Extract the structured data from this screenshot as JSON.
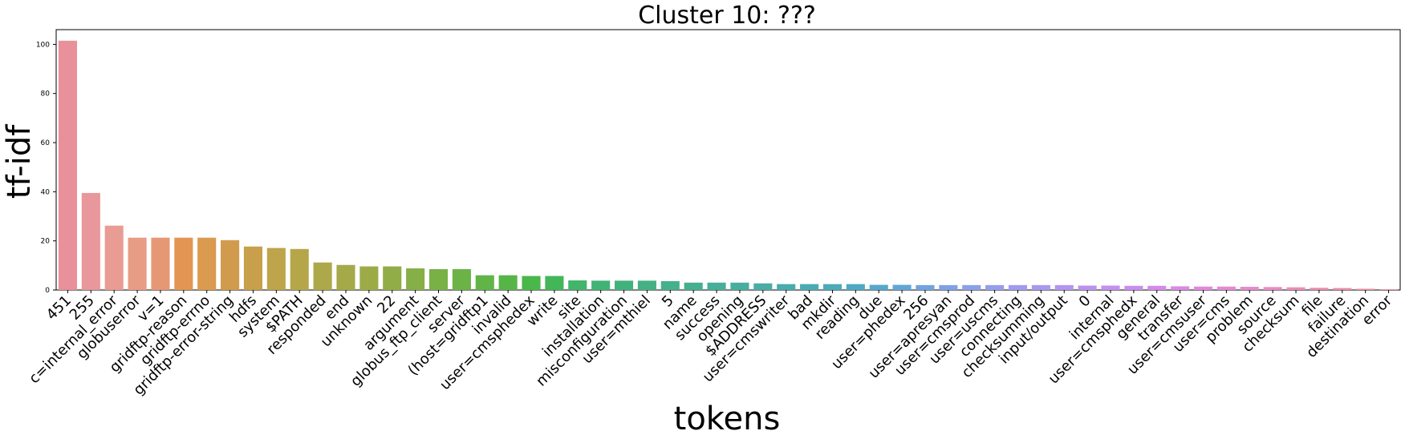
{
  "chart_data": {
    "type": "bar",
    "title": "Cluster 10: ???",
    "xlabel": "tokens",
    "ylabel": "tf-idf",
    "ylim": [
      0,
      106
    ],
    "yticks": [
      0,
      20,
      40,
      60,
      80,
      100
    ],
    "grid": false,
    "categories": [
      "451",
      "255",
      "c=internal_error",
      "globuserror",
      "v=1",
      "gridftp-reason",
      "gridftp-errno",
      "gridftp-error-string",
      "hdfs",
      "system",
      "$PATH",
      "responded",
      "end",
      "unknown",
      "22",
      "argument",
      "globus_ftp_client",
      "server",
      "(host=gridftp1",
      "invalid",
      "user=cmsphedex",
      "write",
      "site",
      "installation",
      "misconfiguration",
      "user=mthiel",
      "5",
      "name",
      "success",
      "opening",
      "$ADDRESS",
      "user=cmswriter",
      "bad",
      "mkdir",
      "reading",
      "due",
      "user=phedex",
      "256",
      "user=apresyan",
      "user=cmsprod",
      "user=uscms",
      "connecting",
      "checksumming",
      "input/output",
      "0",
      "internal",
      "user=cmsphedx",
      "general",
      "transfer",
      "user=cmsuser",
      "user=cms",
      "problem",
      "source",
      "checksum",
      "file",
      "failure",
      "destination",
      "error"
    ],
    "values": [
      101.5,
      39.5,
      26.2,
      21.3,
      21.3,
      21.3,
      21.3,
      20.3,
      17.7,
      17.1,
      16.7,
      11.2,
      10.2,
      9.6,
      9.6,
      8.8,
      8.5,
      8.5,
      6.0,
      6.0,
      5.7,
      5.7,
      3.9,
      3.8,
      3.8,
      3.8,
      3.6,
      3.0,
      3.0,
      3.0,
      2.7,
      2.4,
      2.4,
      2.4,
      2.4,
      2.1,
      2.1,
      2.0,
      2.0,
      2.0,
      2.0,
      2.0,
      2.0,
      2.0,
      1.8,
      1.8,
      1.7,
      1.7,
      1.5,
      1.4,
      1.4,
      1.3,
      1.2,
      1.1,
      0.9,
      0.8,
      0.5,
      0.3
    ],
    "colors": [
      "#e8919a",
      "#e8979a",
      "#e89c94",
      "#e79c86",
      "#e69875",
      "#e39554",
      "#da9a50",
      "#d19b4d",
      "#c89f4a",
      "#bea44a",
      "#b6a64a",
      "#ada84a",
      "#a5a948",
      "#9cab47",
      "#91ad47",
      "#86af47",
      "#79b147",
      "#6cb347",
      "#61b547",
      "#55b647",
      "#49b74a",
      "#43b65a",
      "#42b56a",
      "#41b374",
      "#42b27c",
      "#44b184",
      "#45b08c",
      "#45af92",
      "#46ae99",
      "#47ae9f",
      "#48ada6",
      "#49acad",
      "#4babb4",
      "#4daabb",
      "#4fa9c3",
      "#55a8cc",
      "#62a6d6",
      "#71a4df",
      "#7fa2e5",
      "#8ba0ea",
      "#969ded",
      "#a19bee",
      "#aa98ee",
      "#b395ee",
      "#bb93ee",
      "#c390ee",
      "#cb8dec",
      "#d38ae9",
      "#da89e4",
      "#e088dd",
      "#e489d5",
      "#e68bcc",
      "#e88cc3",
      "#e88db9",
      "#e88eb0",
      "#e98fa7",
      "#e990a1",
      "#e9929c"
    ]
  }
}
